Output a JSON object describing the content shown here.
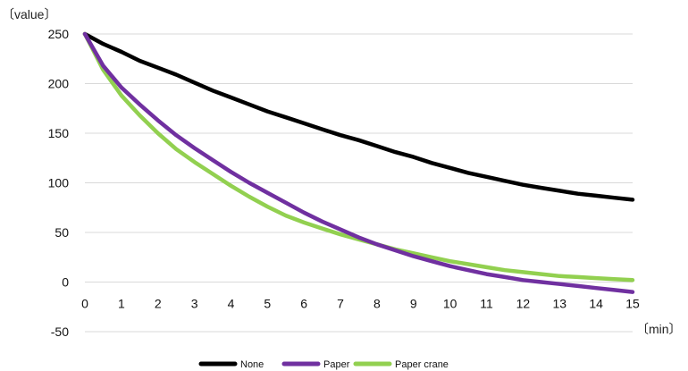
{
  "chart_data": {
    "type": "line",
    "ylabel": "〔value〕",
    "xlabel": "〔min〕",
    "xlim": [
      0,
      15
    ],
    "ylim": [
      -50,
      250
    ],
    "x_ticks": [
      "0",
      "1",
      "2",
      "3",
      "4",
      "5",
      "6",
      "7",
      "8",
      "9",
      "10",
      "11",
      "12",
      "13",
      "14",
      "15"
    ],
    "y_ticks": [
      "250",
      "200",
      "150",
      "100",
      "50",
      "0",
      "-50"
    ],
    "grid": "horizontal",
    "legend_position": "bottom",
    "x": [
      0,
      0.5,
      1,
      1.5,
      2,
      2.5,
      3,
      3.5,
      4,
      4.5,
      5,
      5.5,
      6,
      6.5,
      7,
      7.5,
      8,
      8.5,
      9,
      9.5,
      10,
      10.5,
      11,
      11.5,
      12,
      12.5,
      13,
      13.5,
      14,
      14.5,
      15
    ],
    "series": [
      {
        "name": "None",
        "color": "#000000",
        "values": [
          250,
          240,
          232,
          223,
          216,
          209,
          201,
          193,
          186,
          179,
          172,
          166,
          160,
          154,
          148,
          143,
          137,
          131,
          126,
          120,
          115,
          110,
          106,
          102,
          98,
          95,
          92,
          89,
          87,
          85,
          83
        ]
      },
      {
        "name": "Paper",
        "color": "#7030a0",
        "values": [
          250,
          218,
          196,
          179,
          163,
          148,
          135,
          123,
          111,
          100,
          90,
          80,
          70,
          61,
          53,
          45,
          38,
          32,
          26,
          21,
          16,
          12,
          8,
          5,
          2,
          0,
          -2,
          -4,
          -6,
          -8,
          -10
        ]
      },
      {
        "name": "Paper crane",
        "color": "#92d050",
        "values": [
          250,
          214,
          188,
          168,
          150,
          134,
          121,
          109,
          97,
          86,
          76,
          67,
          60,
          54,
          48,
          43,
          38,
          33,
          29,
          25,
          21,
          18,
          15,
          12,
          10,
          8,
          6,
          5,
          4,
          3,
          2
        ]
      }
    ]
  }
}
